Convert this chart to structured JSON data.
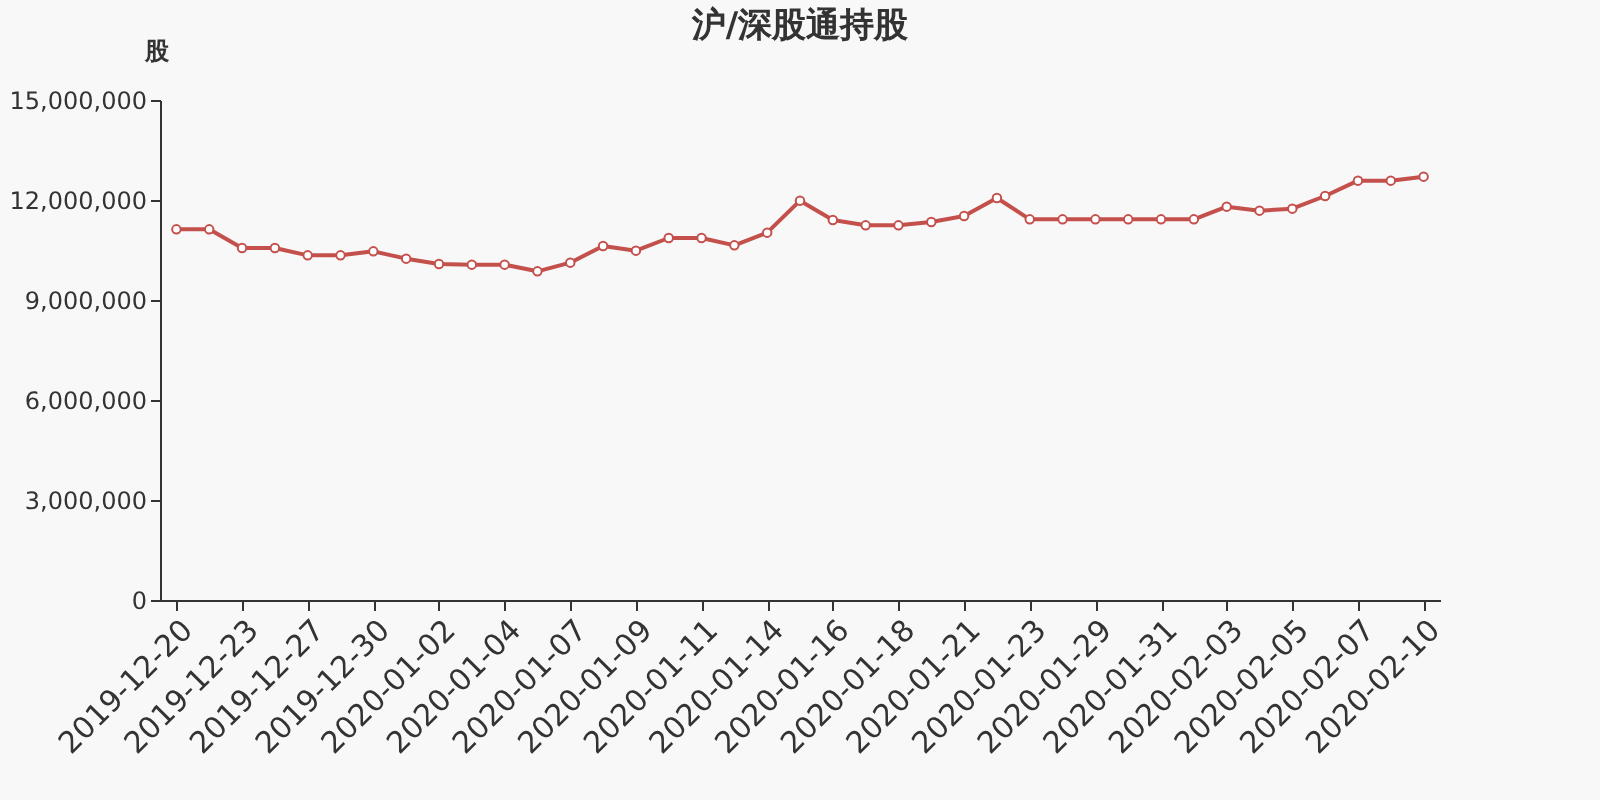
{
  "chart_data": {
    "type": "line",
    "title": "沪/深股通持股",
    "ylabel": "股",
    "categories": [
      "2019-12-20",
      null,
      "2019-12-23",
      null,
      "2019-12-27",
      null,
      "2019-12-30",
      null,
      "2020-01-02",
      null,
      "2020-01-04",
      null,
      "2020-01-07",
      null,
      "2020-01-09",
      null,
      "2020-01-11",
      null,
      "2020-01-14",
      null,
      "2020-01-16",
      null,
      "2020-01-18",
      null,
      "2020-01-21",
      null,
      "2020-01-23",
      null,
      "2020-01-29",
      null,
      "2020-01-31",
      null,
      "2020-02-03",
      null,
      "2020-02-05",
      null,
      "2020-02-07",
      null,
      "2020-02-10"
    ],
    "series": [
      {
        "color": "#c4504c",
        "values": [
          11120000,
          11120000,
          10560000,
          10560000,
          10340000,
          10340000,
          10460000,
          10240000,
          10080000,
          10060000,
          10060000,
          9860000,
          10120000,
          10620000,
          10480000,
          10860000,
          10860000,
          10640000,
          11020000,
          11980000,
          11400000,
          11240000,
          11240000,
          11340000,
          11520000,
          12060000,
          11420000,
          11420000,
          11420000,
          11420000,
          11420000,
          11420000,
          11800000,
          11680000,
          11740000,
          12120000,
          12580000,
          12580000,
          12700000
        ]
      }
    ],
    "ylim": [
      0,
      15000000
    ],
    "yticks": [
      0,
      {
        "value": 3000000,
        "label": "3,000,000"
      },
      {
        "value": 6000000,
        "label": "6,000,000"
      },
      {
        "value": 9000000,
        "label": "9,000,000"
      },
      {
        "value": 12000000,
        "label": "12,000,000"
      },
      {
        "value": 15000000,
        "label": "15,000,000"
      }
    ],
    "grid": false,
    "marker": "circle",
    "line_style": "solid"
  }
}
